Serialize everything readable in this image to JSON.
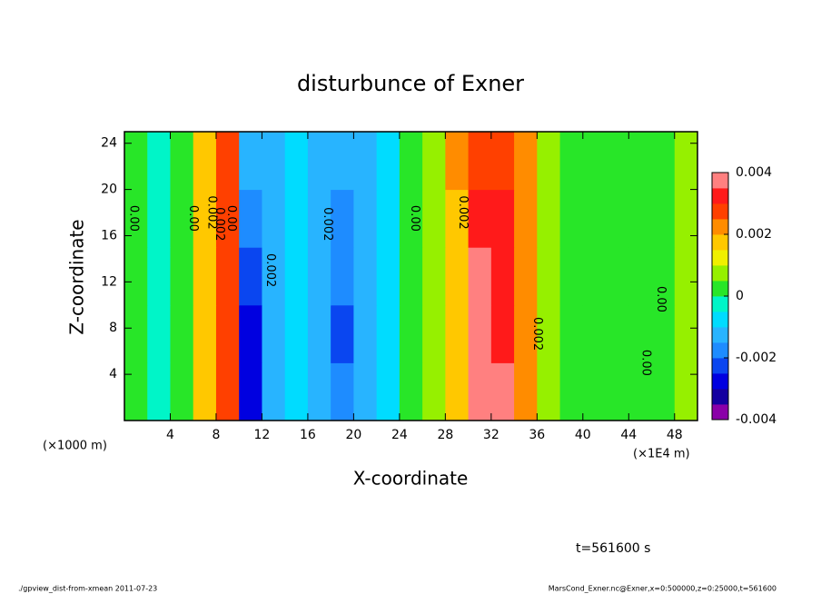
{
  "chart_data": {
    "type": "heatmap",
    "title": "disturbunce of Exner",
    "xlabel": "X-coordinate",
    "ylabel": "Z-coordinate",
    "x_unit": "(×1E4 m)",
    "y_unit": "(×1000 m)",
    "note": "t=561600 s",
    "footer_left": "./gpview_dist-from-xmean  2011-07-23",
    "footer_right": "MarsCond_Exner.nc@Exner,x=0:500000,z=0:25000,t=561600",
    "x": [
      0,
      2,
      4,
      6,
      8,
      10,
      12,
      14,
      16,
      18,
      20,
      22,
      24,
      26,
      28,
      30,
      32,
      34,
      36,
      38,
      40,
      42,
      44,
      46,
      48,
      50
    ],
    "y": [
      0,
      5,
      10,
      15,
      20,
      25
    ],
    "values": [
      [
        0.0001,
        -0.0003,
        0.0003,
        0.0017,
        0.0025,
        -0.0028,
        -0.0014,
        -0.0008,
        -0.0013,
        -0.0019,
        -0.0013,
        -0.0008,
        0.0002,
        0.0008,
        0.0019,
        0.0038,
        0.0037,
        0.0022,
        0.0009,
        0.0004,
        0.0003,
        0.0003,
        0.0003,
        0.0004,
        0.0008
      ],
      [
        0.0001,
        -0.0003,
        0.0003,
        0.0017,
        0.0025,
        -0.0026,
        -0.0014,
        -0.0008,
        -0.0013,
        -0.0022,
        -0.0013,
        -0.0008,
        0.0002,
        0.0008,
        0.0019,
        0.0037,
        0.0034,
        0.0022,
        0.0009,
        0.0004,
        0.0003,
        0.0003,
        0.0003,
        0.0004,
        0.0008
      ],
      [
        0.0001,
        -0.0003,
        0.0003,
        0.0017,
        0.0025,
        -0.0022,
        -0.0014,
        -0.0008,
        -0.0013,
        -0.0019,
        -0.0013,
        -0.0008,
        0.0002,
        0.0008,
        0.0019,
        0.0036,
        0.0034,
        0.0022,
        0.0009,
        0.0004,
        0.0003,
        0.0003,
        0.0003,
        0.0004,
        0.0008
      ],
      [
        0.0001,
        -0.0003,
        0.0003,
        0.0017,
        0.0025,
        -0.0016,
        -0.0014,
        -0.0008,
        -0.0013,
        -0.0019,
        -0.0013,
        -0.0008,
        0.0002,
        0.0008,
        0.0019,
        0.003,
        0.003,
        0.0022,
        0.0009,
        0.0004,
        0.0003,
        0.0003,
        0.0003,
        0.0004,
        0.0006
      ],
      [
        0.0002,
        -0.0002,
        0.0003,
        0.0017,
        0.0025,
        -0.0012,
        -0.0012,
        -0.0008,
        -0.0013,
        -0.0013,
        -0.0011,
        -0.0008,
        0.0002,
        0.0008,
        0.0022,
        0.0028,
        0.0028,
        0.0022,
        0.0009,
        0.0004,
        0.0003,
        0.0003,
        0.0003,
        0.0004,
        0.0005
      ]
    ],
    "clim": [
      -0.004,
      0.004
    ],
    "colors": [
      "#8a00a8",
      "#1400a0",
      "#0000e0",
      "#0a46f0",
      "#1e8cff",
      "#28b4ff",
      "#00dcff",
      "#00f5c8",
      "#28e628",
      "#96f000",
      "#f0f000",
      "#ffc800",
      "#ff8c00",
      "#ff4000",
      "#ff1a1a",
      "#ff8080"
    ],
    "cticks": [
      0.004,
      0.002,
      0,
      -0.002,
      -0.004
    ],
    "xlim": [
      0,
      50
    ],
    "ylim": [
      0,
      25
    ],
    "xticks": [
      4,
      8,
      12,
      16,
      20,
      24,
      28,
      32,
      36,
      40,
      44,
      48
    ],
    "yticks": [
      4,
      8,
      12,
      16,
      20,
      24
    ],
    "annotations": [
      {
        "text": "0.00",
        "x": 0.8,
        "y": 17.5
      },
      {
        "text": "0.00",
        "x": 6,
        "y": 17.5
      },
      {
        "text": "0.002",
        "x": 7.6,
        "y": 18
      },
      {
        "text": "0.002",
        "x": 8.3,
        "y": 17
      },
      {
        "text": "0.00",
        "x": 9.3,
        "y": 17.5
      },
      {
        "text": "0.002",
        "x": 12.7,
        "y": 13
      },
      {
        "text": "0.002",
        "x": 17.7,
        "y": 17
      },
      {
        "text": "0.00",
        "x": 25.3,
        "y": 17.5
      },
      {
        "text": "0.002",
        "x": 29.5,
        "y": 18
      },
      {
        "text": "0.002",
        "x": 36,
        "y": 7.5
      },
      {
        "text": "0.00",
        "x": 45.5,
        "y": 5
      },
      {
        "text": "0.00",
        "x": 46.8,
        "y": 10.5
      }
    ]
  }
}
